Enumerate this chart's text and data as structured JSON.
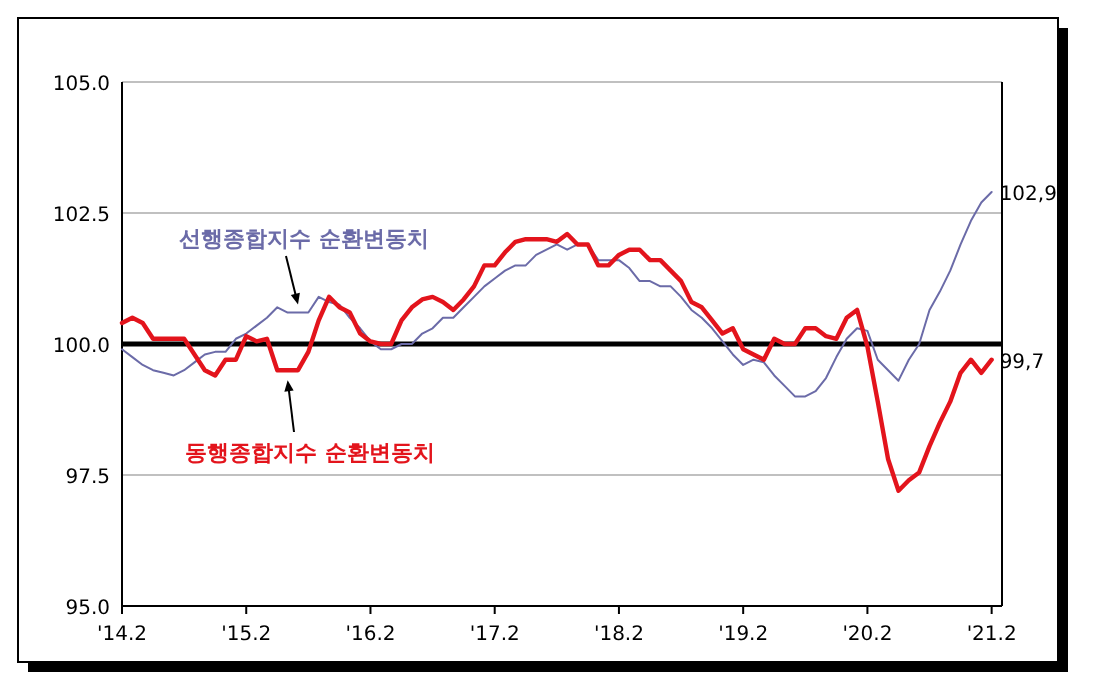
{
  "chart_data": {
    "type": "line",
    "x": [
      "2014-02",
      "2014-03",
      "2014-04",
      "2014-05",
      "2014-06",
      "2014-07",
      "2014-08",
      "2014-09",
      "2014-10",
      "2014-11",
      "2014-12",
      "2015-01",
      "2015-02",
      "2015-03",
      "2015-04",
      "2015-05",
      "2015-06",
      "2015-07",
      "2015-08",
      "2015-09",
      "2015-10",
      "2015-11",
      "2015-12",
      "2016-01",
      "2016-02",
      "2016-03",
      "2016-04",
      "2016-05",
      "2016-06",
      "2016-07",
      "2016-08",
      "2016-09",
      "2016-10",
      "2016-11",
      "2016-12",
      "2017-01",
      "2017-02",
      "2017-03",
      "2017-04",
      "2017-05",
      "2017-06",
      "2017-07",
      "2017-08",
      "2017-09",
      "2017-10",
      "2017-11",
      "2017-12",
      "2018-01",
      "2018-02",
      "2018-03",
      "2018-04",
      "2018-05",
      "2018-06",
      "2018-07",
      "2018-08",
      "2018-09",
      "2018-10",
      "2018-11",
      "2018-12",
      "2019-01",
      "2019-02",
      "2019-03",
      "2019-04",
      "2019-05",
      "2019-06",
      "2019-07",
      "2019-08",
      "2019-09",
      "2019-10",
      "2019-11",
      "2019-12",
      "2020-01",
      "2020-02",
      "2020-03",
      "2020-04",
      "2020-05",
      "2020-06",
      "2020-07",
      "2020-08",
      "2020-09",
      "2020-10",
      "2020-11",
      "2020-12",
      "2021-01",
      "2021-02"
    ],
    "series": [
      {
        "name": "선행종합지수 순환변동치",
        "color": "#6b6ba8",
        "values": [
          99.9,
          99.75,
          99.6,
          99.5,
          99.45,
          99.4,
          99.5,
          99.65,
          99.8,
          99.85,
          99.85,
          100.1,
          100.2,
          100.35,
          100.5,
          100.7,
          100.6,
          100.6,
          100.6,
          100.9,
          100.8,
          100.75,
          100.5,
          100.3,
          100.05,
          99.9,
          99.9,
          100.0,
          100.0,
          100.2,
          100.3,
          100.5,
          100.5,
          100.7,
          100.9,
          101.1,
          101.25,
          101.4,
          101.5,
          101.5,
          101.7,
          101.8,
          101.9,
          101.8,
          101.9,
          101.9,
          101.6,
          101.6,
          101.6,
          101.45,
          101.2,
          101.2,
          101.1,
          101.1,
          100.9,
          100.65,
          100.5,
          100.3,
          100.05,
          99.8,
          99.6,
          99.7,
          99.65,
          99.4,
          99.2,
          99.0,
          99.0,
          99.1,
          99.35,
          99.75,
          100.1,
          100.3,
          100.25,
          99.7,
          99.5,
          99.3,
          99.7,
          100.0,
          100.65,
          101.0,
          101.4,
          101.9,
          102.35,
          102.7,
          102.9
        ]
      },
      {
        "name": "동행종합지수 순환변동치",
        "color": "#e3141c",
        "values": [
          100.4,
          100.5,
          100.4,
          100.1,
          100.1,
          100.1,
          100.1,
          99.8,
          99.5,
          99.4,
          99.7,
          99.7,
          100.15,
          100.05,
          100.1,
          99.5,
          99.5,
          99.5,
          99.85,
          100.45,
          100.9,
          100.7,
          100.6,
          100.2,
          100.05,
          100.0,
          100.0,
          100.45,
          100.7,
          100.85,
          100.9,
          100.8,
          100.65,
          100.85,
          101.1,
          101.5,
          101.5,
          101.75,
          101.95,
          102.0,
          102.0,
          102.0,
          101.95,
          102.1,
          101.9,
          101.9,
          101.5,
          101.5,
          101.7,
          101.8,
          101.8,
          101.6,
          101.6,
          101.4,
          101.2,
          100.8,
          100.7,
          100.45,
          100.2,
          100.3,
          99.9,
          99.8,
          99.7,
          100.1,
          100.0,
          100.0,
          100.3,
          100.3,
          100.15,
          100.1,
          100.5,
          100.65,
          99.95,
          98.9,
          97.8,
          97.2,
          97.4,
          97.55,
          98.05,
          98.5,
          98.9,
          99.45,
          99.7,
          99.45,
          99.7
        ]
      }
    ],
    "xlim": [
      "2014-02",
      "2021-03"
    ],
    "xticks": [
      {
        "value": "2014-02",
        "label": "'14.2"
      },
      {
        "value": "2015-02",
        "label": "'15.2"
      },
      {
        "value": "2016-02",
        "label": "'16.2"
      },
      {
        "value": "2017-02",
        "label": "'17.2"
      },
      {
        "value": "2018-02",
        "label": "'18.2"
      },
      {
        "value": "2019-02",
        "label": "'19.2"
      },
      {
        "value": "2020-02",
        "label": "'20.2"
      },
      {
        "value": "2021-02",
        "label": "'21.2"
      }
    ],
    "ylim": [
      95,
      105
    ],
    "yticks": [
      {
        "value": 95,
        "label": "95.0"
      },
      {
        "value": 97.5,
        "label": "97.5"
      },
      {
        "value": 100,
        "label": "100.0"
      },
      {
        "value": 102.5,
        "label": "102.5"
      },
      {
        "value": 105,
        "label": "105.0"
      }
    ],
    "grid": "y",
    "ref_lines": [
      {
        "axis": "y",
        "value": 100,
        "color": "#000000"
      }
    ],
    "annotations": [
      {
        "text": "102,9",
        "x": "2021-02",
        "y": 102.9
      },
      {
        "text": "99,7",
        "x": "2021-02",
        "y": 99.7
      }
    ]
  }
}
